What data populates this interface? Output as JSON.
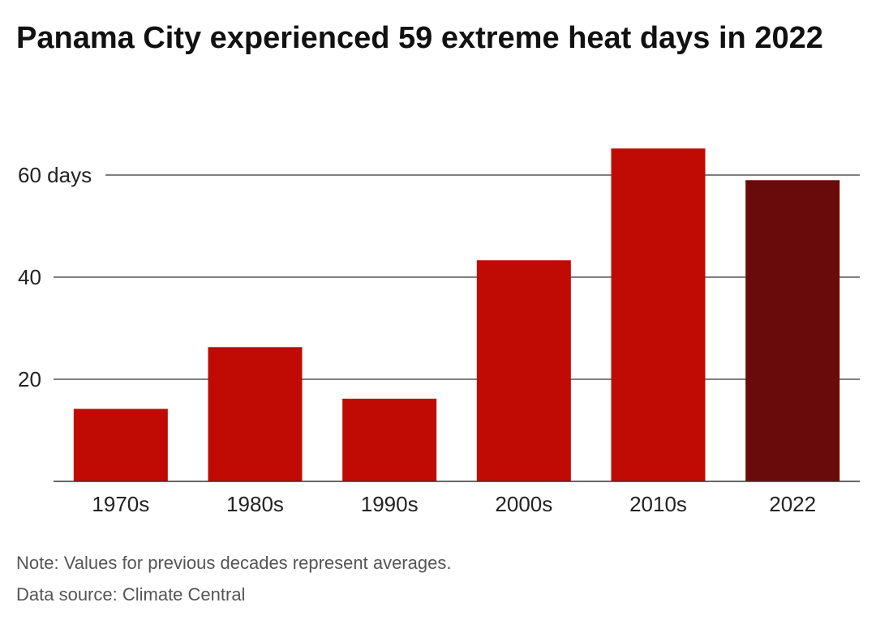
{
  "chart_data": {
    "type": "bar",
    "title": "Panama City experienced 59 extreme heat days in 2022",
    "categories": [
      "1970s",
      "1980s",
      "1990s",
      "2000s",
      "2010s",
      "2022"
    ],
    "values": [
      14.2,
      26.3,
      16.2,
      43.3,
      65.2,
      59
    ],
    "ylim": [
      0,
      70
    ],
    "yticks": [
      20,
      40,
      60
    ],
    "ytick_labels": [
      "20",
      "40",
      "60 days"
    ],
    "xlabel": "",
    "ylabel": "",
    "grid": true,
    "legend": "none",
    "colors": [
      "#c00a04",
      "#c00a04",
      "#c00a04",
      "#c00a04",
      "#c00a04",
      "#690b0a"
    ]
  },
  "note": "Note: Values for previous decades represent averages.",
  "source": "Data source: Climate Central"
}
